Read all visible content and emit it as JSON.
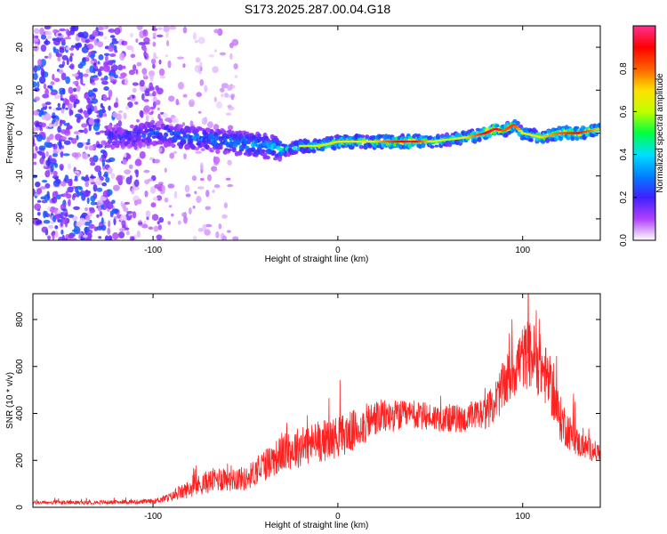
{
  "title": "S173.2025.287.00.04.G18",
  "chart_data": [
    {
      "type": "heatmap",
      "xlabel": "Height of straight line (km)",
      "ylabel": "Frequency (Hz)",
      "xlim": [
        -165,
        142
      ],
      "ylim": [
        -25,
        25
      ],
      "xticks": [
        -100,
        0,
        100
      ],
      "yticks": [
        -20,
        -10,
        0,
        10,
        20
      ],
      "colorbar": {
        "label": "Normalized spectral amplitude",
        "range": [
          0,
          1
        ],
        "ticks": [
          0.0,
          0.2,
          0.4,
          0.6,
          0.8
        ],
        "tick_labels": [
          "0.0",
          "0.2",
          "0.4",
          "0.6",
          "0.8"
        ],
        "colors": [
          "#ffffff",
          "#b040ff",
          "#4020ff",
          "#0080ff",
          "#00e0ff",
          "#00ff40",
          "#c0ff00",
          "#ffe000",
          "#ff6000",
          "#ff0000",
          "#ff3090"
        ]
      },
      "ridge": {
        "x": [
          -120,
          -100,
          -80,
          -60,
          -40,
          -30,
          -20,
          -10,
          0,
          10,
          20,
          30,
          40,
          50,
          60,
          70,
          80,
          85,
          90,
          95,
          100,
          110,
          120,
          130,
          142
        ],
        "y": [
          -1,
          0,
          -1,
          -2,
          -3,
          -4,
          -3,
          -3,
          -2,
          -2,
          -2,
          -2,
          -2,
          -2,
          -1.5,
          -1,
          0,
          1,
          0.5,
          2,
          0,
          -1,
          0,
          0,
          1
        ],
        "amplitude": [
          0.25,
          0.3,
          0.35,
          0.35,
          0.4,
          0.45,
          0.5,
          0.55,
          0.6,
          0.6,
          0.6,
          0.75,
          0.85,
          0.6,
          0.5,
          0.6,
          0.8,
          0.85,
          0.7,
          0.75,
          0.55,
          0.6,
          0.7,
          0.8,
          0.6
        ]
      }
    },
    {
      "type": "line",
      "xlabel": "Height of straight line (km)",
      "ylabel": "SNR (10 * v/v)",
      "xlim": [
        -165,
        142
      ],
      "ylim": [
        0,
        910
      ],
      "xticks": [
        -100,
        0,
        100
      ],
      "yticks": [
        0,
        200,
        400,
        600,
        800
      ],
      "series": [
        {
          "color": "#ff2020",
          "envelope": {
            "x": [
              -165,
              -140,
              -120,
              -100,
              -90,
              -80,
              -70,
              -60,
              -50,
              -40,
              -30,
              -20,
              -10,
              0,
              10,
              20,
              30,
              40,
              50,
              60,
              70,
              80,
              85,
              90,
              95,
              100,
              105,
              110,
              115,
              120,
              130,
              142
            ],
            "y": [
              20,
              20,
              22,
              25,
              45,
              80,
              110,
              130,
              120,
              180,
              230,
              260,
              280,
              300,
              330,
              380,
              390,
              390,
              385,
              380,
              375,
              400,
              450,
              520,
              590,
              640,
              650,
              600,
              520,
              380,
              270,
              230
            ],
            "noise": [
              8,
              8,
              8,
              10,
              20,
              40,
              50,
              60,
              50,
              70,
              80,
              90,
              90,
              90,
              90,
              80,
              70,
              60,
              60,
              60,
              60,
              70,
              90,
              110,
              130,
              140,
              150,
              140,
              120,
              100,
              60,
              40
            ]
          }
        }
      ]
    }
  ]
}
